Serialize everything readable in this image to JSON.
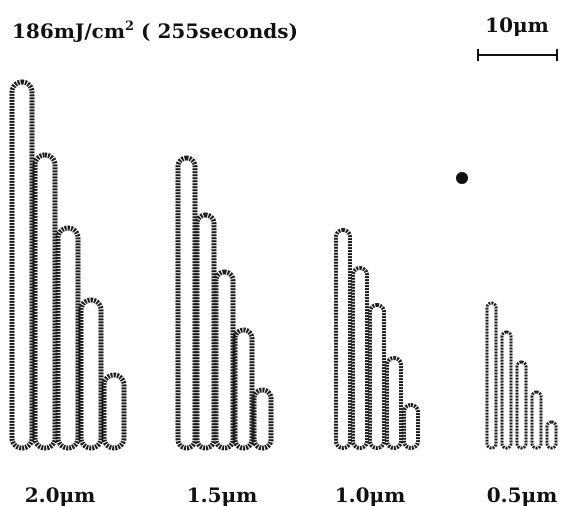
{
  "title": {
    "main": "186mJ/cm",
    "superscript": "2",
    "rest": " ( 255seconds)"
  },
  "scale_bar": {
    "label": "10μm"
  },
  "patterns": [
    {
      "label": "2.0μm"
    },
    {
      "label": "1.5μm"
    },
    {
      "label": "1.0μm"
    },
    {
      "label": "0.5μm"
    }
  ]
}
